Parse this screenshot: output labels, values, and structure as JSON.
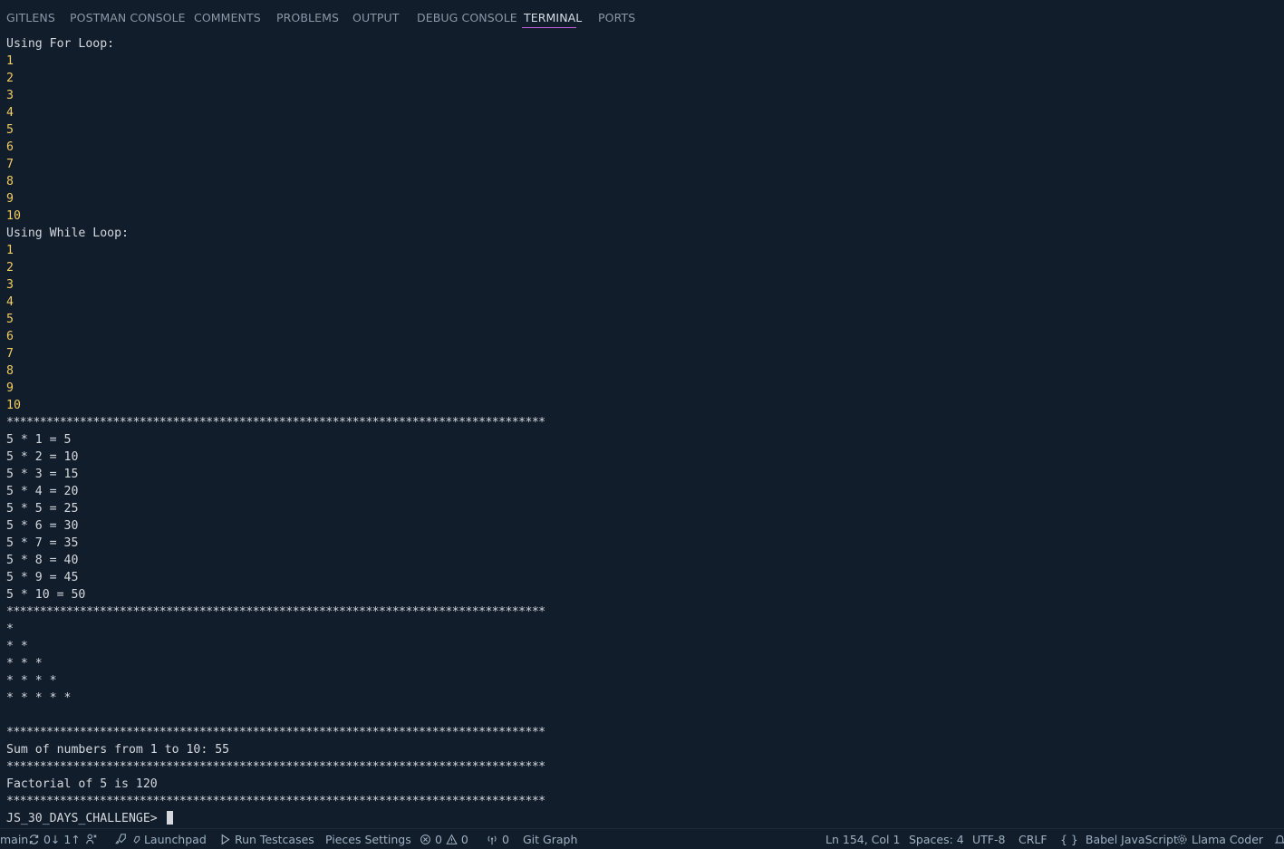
{
  "panel_tabs": [
    {
      "label": "GITLENS",
      "active": false
    },
    {
      "label": "POSTMAN CONSOLE",
      "active": false
    },
    {
      "label": "COMMENTS",
      "active": false
    },
    {
      "label": "PROBLEMS",
      "active": false
    },
    {
      "label": "OUTPUT",
      "active": false
    },
    {
      "label": "DEBUG CONSOLE",
      "active": false
    },
    {
      "label": "TERMINAL",
      "active": true
    },
    {
      "label": "PORTS",
      "active": false
    }
  ],
  "terminal": {
    "lines": [
      {
        "text": "Using For Loop:",
        "kind": "text"
      },
      {
        "text": "1",
        "kind": "num"
      },
      {
        "text": "2",
        "kind": "num"
      },
      {
        "text": "3",
        "kind": "num"
      },
      {
        "text": "4",
        "kind": "num"
      },
      {
        "text": "5",
        "kind": "num"
      },
      {
        "text": "6",
        "kind": "num"
      },
      {
        "text": "7",
        "kind": "num"
      },
      {
        "text": "8",
        "kind": "num"
      },
      {
        "text": "9",
        "kind": "num"
      },
      {
        "text": "10",
        "kind": "num"
      },
      {
        "text": "Using While Loop:",
        "kind": "text"
      },
      {
        "text": "1",
        "kind": "num"
      },
      {
        "text": "2",
        "kind": "num"
      },
      {
        "text": "3",
        "kind": "num"
      },
      {
        "text": "4",
        "kind": "num"
      },
      {
        "text": "5",
        "kind": "num"
      },
      {
        "text": "6",
        "kind": "num"
      },
      {
        "text": "7",
        "kind": "num"
      },
      {
        "text": "8",
        "kind": "num"
      },
      {
        "text": "9",
        "kind": "num"
      },
      {
        "text": "10",
        "kind": "num"
      },
      {
        "text": "*********************************************************************************",
        "kind": "stars"
      },
      {
        "text": "5 * 1 = 5",
        "kind": "text"
      },
      {
        "text": "5 * 2 = 10",
        "kind": "text"
      },
      {
        "text": "5 * 3 = 15",
        "kind": "text"
      },
      {
        "text": "5 * 4 = 20",
        "kind": "text"
      },
      {
        "text": "5 * 5 = 25",
        "kind": "text"
      },
      {
        "text": "5 * 6 = 30",
        "kind": "text"
      },
      {
        "text": "5 * 7 = 35",
        "kind": "text"
      },
      {
        "text": "5 * 8 = 40",
        "kind": "text"
      },
      {
        "text": "5 * 9 = 45",
        "kind": "text"
      },
      {
        "text": "5 * 10 = 50",
        "kind": "text"
      },
      {
        "text": "*********************************************************************************",
        "kind": "stars"
      },
      {
        "text": "*",
        "kind": "text"
      },
      {
        "text": "* *",
        "kind": "text"
      },
      {
        "text": "* * *",
        "kind": "text"
      },
      {
        "text": "* * * *",
        "kind": "text"
      },
      {
        "text": "* * * * *",
        "kind": "text"
      },
      {
        "text": "",
        "kind": "text"
      },
      {
        "text": "*********************************************************************************",
        "kind": "stars"
      },
      {
        "text": "Sum of numbers from 1 to 10: 55",
        "kind": "text"
      },
      {
        "text": "*********************************************************************************",
        "kind": "stars"
      },
      {
        "text": "Factorial of 5 is 120",
        "kind": "text"
      },
      {
        "text": "*********************************************************************************",
        "kind": "stars"
      }
    ],
    "prompt": "JS_30_DAYS_CHALLENGE>"
  },
  "status_bar": {
    "branch": "main",
    "sync": "0↓ 1↑",
    "launchpad": "Launchpad",
    "run_testcases": "Run Testcases",
    "pieces_settings": "Pieces Settings",
    "errors": "0",
    "warnings": "0",
    "ports": "0",
    "git_graph": "Git Graph",
    "cursor_position": "Ln 154, Col 1",
    "indentation": "Spaces: 4",
    "encoding": "UTF-8",
    "line_endings": "CRLF",
    "language": "Babel JavaScript",
    "llama": "Llama Coder"
  },
  "colors": {
    "background": "#111d2b",
    "terminal_text": "#d4d8de",
    "number_output": "#f2cd63",
    "active_tab_underline": "#c45fe0",
    "inactive_tab": "#8a97a8"
  }
}
